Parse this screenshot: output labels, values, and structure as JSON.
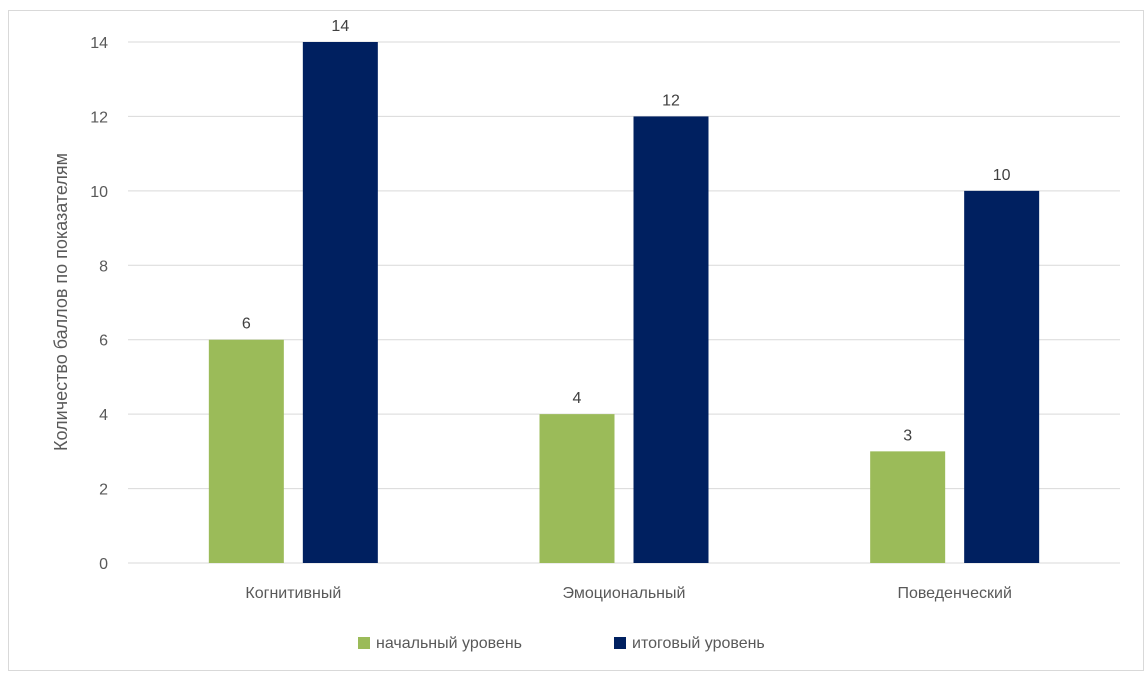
{
  "chart_data": {
    "type": "bar",
    "title": "",
    "xlabel": "",
    "ylabel": "Количество баллов по показателям",
    "ylim": [
      0,
      14
    ],
    "yticks": [
      0,
      2,
      4,
      6,
      8,
      10,
      12,
      14
    ],
    "grid": true,
    "legend_position": "bottom",
    "categories": [
      "Когнитивный",
      "Эмоциональный",
      "Поведенческий"
    ],
    "series": [
      {
        "name": "начальный уровень",
        "color": "#9bbb59",
        "values": [
          6,
          4,
          3
        ]
      },
      {
        "name": "итоговый уровень",
        "color": "#002060",
        "values": [
          14,
          12,
          10
        ]
      }
    ]
  }
}
